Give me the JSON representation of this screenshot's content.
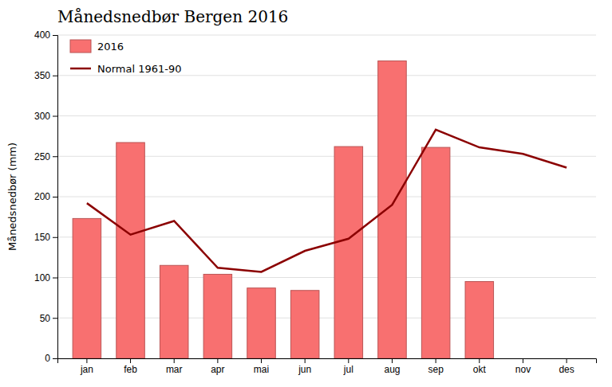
{
  "chart_data": {
    "type": "bar",
    "title": "Månedsnedbør Bergen 2016",
    "ylabel": "Månedsnedbør (mm)",
    "categories": [
      "jan",
      "feb",
      "mar",
      "apr",
      "mai",
      "jun",
      "jul",
      "aug",
      "sep",
      "okt",
      "nov",
      "des"
    ],
    "series": [
      {
        "name": "2016",
        "type": "bar",
        "color": "#F87070",
        "values": [
          173,
          267,
          115,
          104,
          87,
          84,
          262,
          368,
          261,
          95,
          0,
          0
        ]
      },
      {
        "name": "Normal 1961-90",
        "type": "line",
        "color": "#8B0000",
        "values": [
          192,
          153,
          170,
          112,
          107,
          133,
          148,
          190,
          283,
          261,
          253,
          236
        ]
      }
    ],
    "ylim": [
      0,
      400
    ],
    "yticks": [
      0,
      50,
      100,
      150,
      200,
      250,
      300,
      350,
      400
    ],
    "grid": true,
    "legend": "upper left"
  }
}
